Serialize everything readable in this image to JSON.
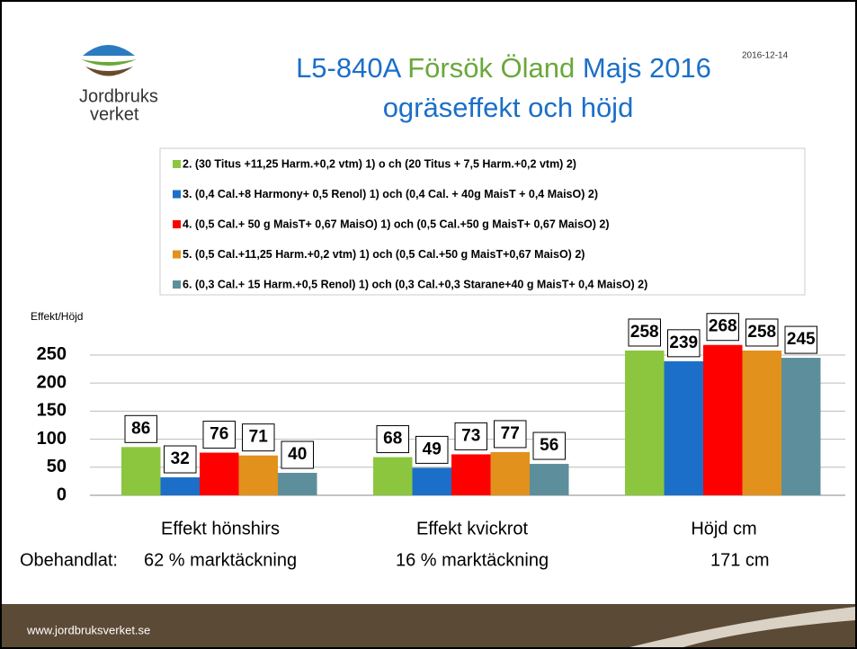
{
  "slide": {
    "title_parts": [
      "L5-840A",
      "Försök Öland",
      "Majs 2016"
    ],
    "subtitle": "ogräseffekt och höjd",
    "date": "2016-12-14",
    "logo": [
      "Jordbruks",
      "verket"
    ],
    "untreated_label": "Obehandlat:",
    "untreated": [
      "62 % marktäckning",
      "16 % marktäckning",
      "171 cm"
    ],
    "footer": "www.jordbruksverket.se"
  },
  "chart_data": {
    "type": "bar",
    "y_label": "Effekt/Höjd",
    "categories": [
      "Effekt hönshirs",
      "Effekt kvickrot",
      "Höjd cm"
    ],
    "series": [
      {
        "name": "2. (30 Titus +11,25 Harm.+0,2 vtm) 1) o ch (20 Titus + 7,5 Harm.+0,2 vtm) 2)",
        "color": "#8cc63e",
        "values": [
          86,
          68,
          258
        ]
      },
      {
        "name": "3. (0,4 Cal.+8 Harmony+ 0,5 Renol) 1) och (0,4 Cal. + 40g MaisT + 0,4 MaisO) 2)",
        "color": "#1c6fc8",
        "values": [
          32,
          49,
          239
        ]
      },
      {
        "name": "4. (0,5 Cal.+ 50 g MaisT+ 0,67 MaisO) 1)  och (0,5 Cal.+50 g MaisT+ 0,67 MaisO) 2)",
        "color": "#ff0000",
        "values": [
          76,
          73,
          268
        ]
      },
      {
        "name": "5. (0,5 Cal.+11,25 Harm.+0,2 vtm) 1) och (0,5 Cal.+50 g MaisT+0,67 MaisO) 2)",
        "color": "#e1911c",
        "values": [
          71,
          77,
          258
        ]
      },
      {
        "name": "6. (0,3 Cal.+ 15 Harm.+0,5 Renol) 1) och (0,3 Cal.+0,3 Starane+40 g MaisT+ 0,4 MaisO) 2)",
        "color": "#5c8f9b",
        "values": [
          40,
          56,
          245
        ]
      }
    ],
    "ylim": [
      0,
      290
    ],
    "yticks": [
      0,
      50,
      100,
      150,
      200,
      250
    ],
    "grid": true
  }
}
